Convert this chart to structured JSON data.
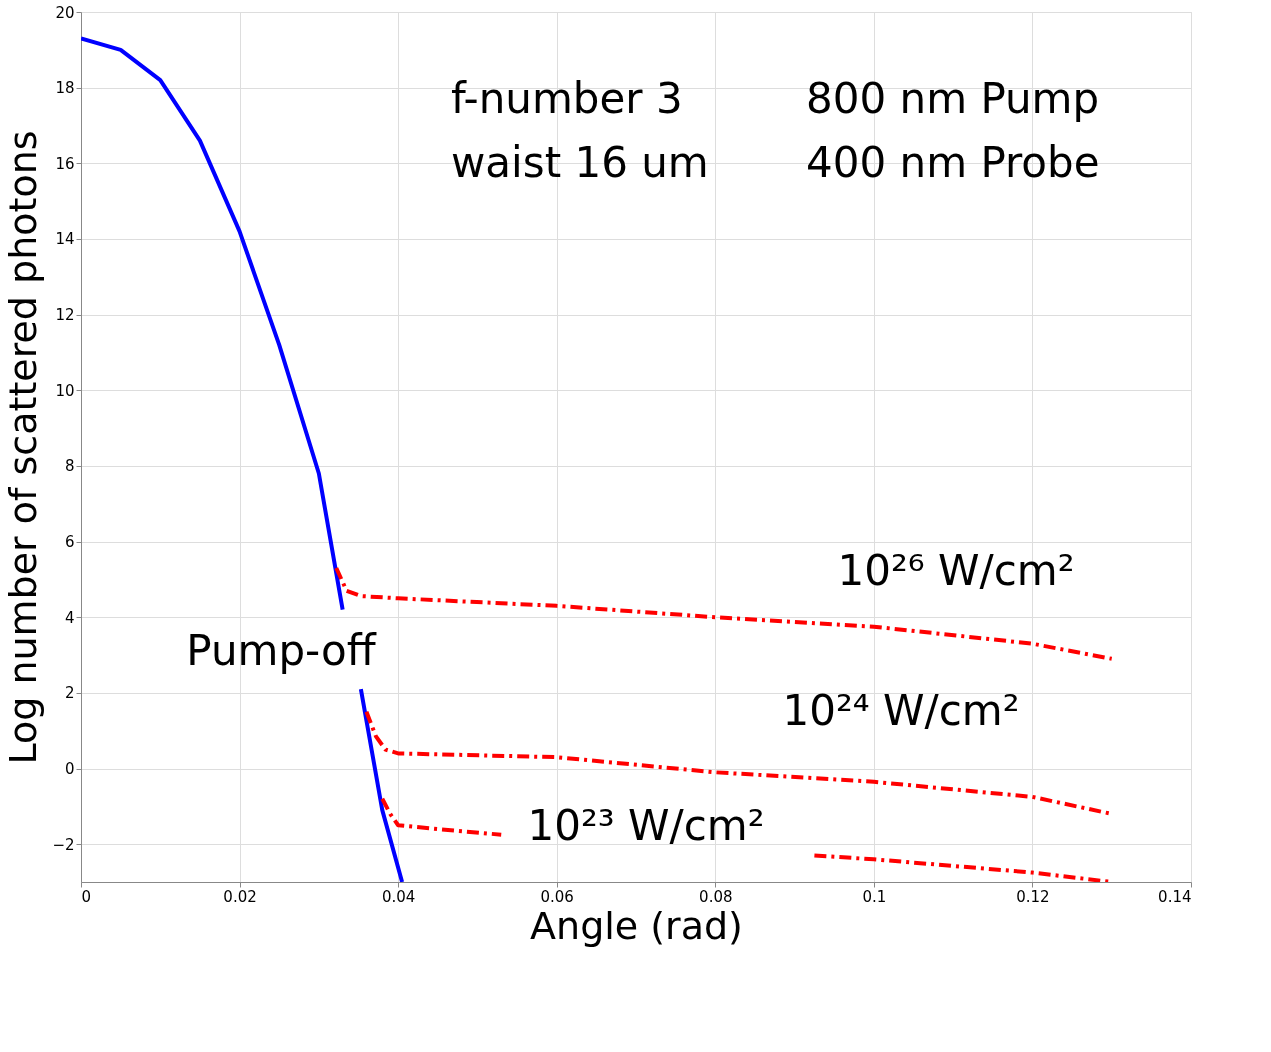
{
  "chart_data": {
    "type": "line",
    "xlabel": "Angle (rad)",
    "ylabel": "Log number of scattered photons",
    "xlim": [
      0,
      0.14
    ],
    "xticks": [
      0,
      0.02,
      0.04,
      0.06,
      0.08,
      0.1,
      0.12,
      0.14
    ],
    "ylim": [
      -3,
      20
    ],
    "yticks": [
      -2,
      0,
      2,
      4,
      6,
      8,
      10,
      12,
      14,
      16,
      18,
      20
    ],
    "grid": true,
    "series": [
      {
        "color": "#0000ff",
        "line_style": "solid",
        "x": [
          0,
          0.005,
          0.01,
          0.015,
          0.02,
          0.025,
          0.03,
          0.033,
          0.034,
          0.0353,
          0.038,
          0.0405
        ],
        "values": [
          19.3,
          19.0,
          18.2,
          16.6,
          14.2,
          11.2,
          7.8,
          4.2,
          null,
          2.1,
          -1.1,
          -3
        ]
      },
      {
        "color": "#ff0000",
        "line_style": "dashed",
        "x": [
          0.0322,
          0.0335,
          0.0353,
          0.04,
          0.06,
          0.08,
          0.1,
          0.12,
          0.13
        ],
        "values": [
          5.3,
          4.7,
          4.56,
          4.5,
          4.3,
          4.0,
          3.75,
          3.3,
          2.9
        ]
      },
      {
        "color": "#ff0000",
        "line_style": "dashed",
        "x": [
          0.036,
          0.0372,
          0.0384,
          0.04,
          0.06,
          0.08,
          0.1,
          0.12,
          0.13
        ],
        "values": [
          1.5,
          0.85,
          0.5,
          0.4,
          0.3,
          -0.1,
          -0.35,
          -0.75,
          -1.2
        ]
      },
      {
        "color": "#ff0000",
        "line_style": "dashed",
        "x": [
          0.038,
          0.039,
          0.04,
          0.045,
          0.053,
          0.07,
          0.0925,
          0.1,
          0.12,
          0.13
        ],
        "values": [
          -0.8,
          -1.2,
          -1.5,
          -1.6,
          -1.75,
          null,
          -2.3,
          -2.4,
          -2.75,
          -3
        ]
      }
    ],
    "annotations": [
      "f-number 3",
      "waist 16 um",
      "800 nm Pump",
      "400 nm Probe",
      "Pump-off",
      "10²⁶ W/cm²",
      "10²⁴ W/cm²",
      "10²³ W/cm²"
    ]
  }
}
